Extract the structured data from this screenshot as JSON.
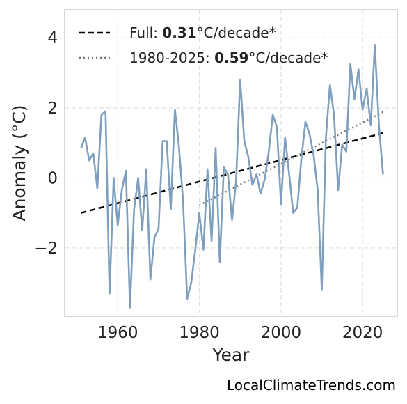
{
  "chart_data": {
    "type": "line",
    "xlabel": "Year",
    "ylabel": "Anomaly (°C)",
    "xlim": [
      1947,
      2028.5
    ],
    "ylim": [
      -3.95,
      4.8
    ],
    "x_ticks": [
      1960,
      1980,
      2000,
      2020
    ],
    "y_ticks": [
      4,
      2,
      0,
      -2
    ],
    "y_tick_labels": [
      "4",
      "2",
      "0",
      "−2"
    ],
    "grid": true,
    "legend_position": "top-left",
    "series": [
      {
        "color": "#7f9fbf",
        "x": [
          1951,
          1952,
          1953,
          1954,
          1955,
          1956,
          1957,
          1958,
          1959,
          1960,
          1961,
          1962,
          1963,
          1964,
          1965,
          1966,
          1967,
          1968,
          1969,
          1970,
          1971,
          1972,
          1973,
          1974,
          1975,
          1976,
          1977,
          1978,
          1979,
          1980,
          1981,
          1982,
          1983,
          1984,
          1985,
          1986,
          1987,
          1988,
          1989,
          1990,
          1991,
          1992,
          1993,
          1994,
          1995,
          1996,
          1997,
          1998,
          1999,
          2000,
          2001,
          2002,
          2003,
          2004,
          2005,
          2006,
          2007,
          2008,
          2009,
          2010,
          2011,
          2012,
          2013,
          2014,
          2015,
          2016,
          2017,
          2018,
          2019,
          2020,
          2021,
          2022,
          2023,
          2024,
          2025
        ],
        "y": [
          0.85,
          1.15,
          0.5,
          0.7,
          -0.3,
          1.8,
          1.9,
          -3.3,
          0.0,
          -1.35,
          -0.35,
          0.2,
          -3.7,
          -0.9,
          0.0,
          -1.5,
          0.25,
          -2.9,
          -1.7,
          -1.45,
          1.05,
          1.05,
          -0.9,
          1.95,
          0.9,
          -0.65,
          -3.45,
          -3.0,
          -2.05,
          -1.0,
          -2.05,
          0.25,
          -1.8,
          0.85,
          -2.4,
          0.3,
          0.1,
          -1.2,
          -0.1,
          2.8,
          1.05,
          0.6,
          -0.2,
          0.1,
          -0.45,
          -0.05,
          0.75,
          1.8,
          1.45,
          -0.75,
          1.15,
          0.1,
          -1.0,
          -0.85,
          0.55,
          1.6,
          1.25,
          0.65,
          -0.35,
          -3.2,
          1.15,
          2.65,
          1.8,
          -0.35,
          0.95,
          0.75,
          3.25,
          2.25,
          3.1,
          1.95,
          2.55,
          1.5,
          3.8,
          1.5,
          0.1
        ]
      }
    ],
    "trends": [
      {
        "label_prefix": "Full: ",
        "label_value": "0.31",
        "label_suffix": "°C/decade*",
        "style": "dashed",
        "color": "#000000",
        "x": [
          1951,
          2025
        ],
        "y": [
          -1.0,
          1.28
        ]
      },
      {
        "label_prefix": "1980-2025: ",
        "label_value": "0.59",
        "label_suffix": "°C/decade*",
        "style": "dotted",
        "color": "#777777",
        "x": [
          1980,
          2025
        ],
        "y": [
          -0.78,
          1.88
        ]
      }
    ]
  },
  "source": "LocalClimateTrends.com"
}
